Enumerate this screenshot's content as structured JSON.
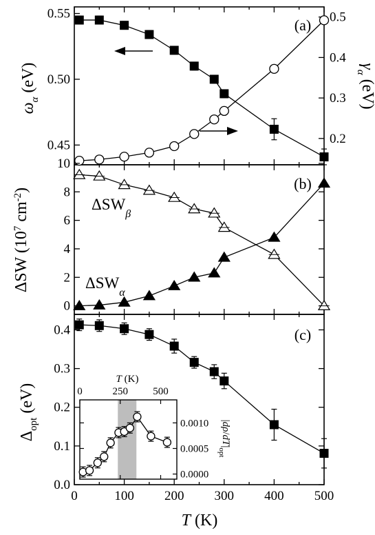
{
  "chart_data": [
    {
      "panel": "a",
      "type": "line",
      "panel_label": "(a)",
      "xlabel": "T (K)",
      "xlim": [
        0,
        500
      ],
      "x_ticks": [
        0,
        100,
        200,
        300,
        400,
        500
      ],
      "ylabel_left": "ω_α (eV)",
      "ylim_left": [
        0.435,
        0.555
      ],
      "y_ticks_left": [
        "0.45",
        "0.50",
        "0.55"
      ],
      "ylabel_right": "γ_α (eV)",
      "ylim_right": [
        0.135,
        0.525
      ],
      "y_ticks_right": [
        "0.2",
        "0.3",
        "0.4",
        "0.5"
      ],
      "series": [
        {
          "axis": "left",
          "marker": "filled-square",
          "x": [
            10,
            50,
            100,
            150,
            200,
            240,
            280,
            300,
            400,
            500
          ],
          "y": [
            0.545,
            0.545,
            0.541,
            0.534,
            0.522,
            0.51,
            0.5,
            0.489,
            0.462,
            0.441
          ],
          "err": [
            0.003,
            0.003,
            0.003,
            0.003,
            0.003,
            0.003,
            0.003,
            0.003,
            0.008,
            0.006
          ]
        },
        {
          "axis": "right",
          "marker": "open-circle",
          "x": [
            10,
            50,
            100,
            150,
            200,
            240,
            280,
            300,
            400,
            500
          ],
          "y": [
            0.145,
            0.148,
            0.155,
            0.165,
            0.181,
            0.211,
            0.247,
            0.268,
            0.372,
            0.492
          ],
          "err": [
            0.008,
            0.008,
            0.008,
            0.008,
            0.008,
            0.008,
            0.008,
            0.008,
            0.009,
            0.008
          ]
        }
      ]
    },
    {
      "panel": "b",
      "type": "line",
      "panel_label": "(b)",
      "xlabel": "T (K)",
      "xlim": [
        0,
        500
      ],
      "x_ticks": [
        0,
        100,
        200,
        300,
        400,
        500
      ],
      "ylabel": "ΔSW (10⁷ cm⁻²)",
      "ylim": [
        -0.6,
        9.9
      ],
      "y_ticks": [
        "0",
        "2",
        "4",
        "6",
        "8",
        "10"
      ],
      "series": [
        {
          "name": "ΔSW_β",
          "marker": "open-triangle",
          "x": [
            10,
            50,
            100,
            150,
            200,
            240,
            280,
            300,
            400,
            500
          ],
          "y": [
            9.2,
            9.1,
            8.5,
            8.1,
            7.6,
            6.8,
            6.5,
            5.5,
            3.6,
            0.0
          ]
        },
        {
          "name": "ΔSW_α",
          "marker": "filled-triangle",
          "x": [
            10,
            50,
            100,
            150,
            200,
            240,
            280,
            300,
            400,
            500
          ],
          "y": [
            0.0,
            0.05,
            0.25,
            0.7,
            1.4,
            2.0,
            2.3,
            3.4,
            4.8,
            8.6
          ]
        }
      ],
      "annotations": {
        "beta": {
          "main": "ΔSW",
          "sub": "β"
        },
        "alpha": {
          "main": "ΔSW",
          "sub": "α"
        }
      }
    },
    {
      "panel": "c",
      "type": "line",
      "panel_label": "(c)",
      "xlabel": "T (K)",
      "xlim": [
        0,
        500
      ],
      "x_ticks": [
        "0",
        "100",
        "200",
        "300",
        "400",
        "500"
      ],
      "ylabel": "Δ_opt (eV)",
      "ylim": [
        0.0,
        0.44
      ],
      "y_ticks": [
        "0.0",
        "0.1",
        "0.2",
        "0.3",
        "0.4"
      ],
      "series": [
        {
          "marker": "filled-square",
          "x": [
            10,
            50,
            100,
            150,
            200,
            240,
            280,
            300,
            400,
            500
          ],
          "y": [
            0.413,
            0.411,
            0.403,
            0.388,
            0.358,
            0.316,
            0.292,
            0.268,
            0.155,
            0.081
          ],
          "err": [
            0.015,
            0.015,
            0.015,
            0.015,
            0.018,
            0.015,
            0.018,
            0.02,
            0.04,
            0.038
          ]
        }
      ]
    },
    {
      "panel": "c-inset",
      "type": "line",
      "xlabel": "T (K)",
      "xlim": [
        0,
        600
      ],
      "x_ticks": [
        "0",
        "250",
        "500"
      ],
      "ylabel_right": "|∇ρ/dT|_opt",
      "ylim": [
        -0.0001,
        0.00145
      ],
      "y_ticks": [
        "0.0000",
        "0.0005",
        "0.0010"
      ],
      "shaded_band": [
        235,
        350
      ],
      "series": [
        {
          "marker": "open-circle",
          "x": [
            20,
            60,
            110,
            150,
            190,
            240,
            275,
            310,
            355,
            440,
            540
          ],
          "y": [
            4e-05,
            7e-05,
            0.00022,
            0.00034,
            0.00061,
            0.00081,
            0.00083,
            0.0009,
            0.00112,
            0.00074,
            0.00062
          ],
          "err": [
            0.0001,
            0.0001,
            0.0001,
            0.0001,
            0.0001,
            0.0001,
            0.0001,
            0.0001,
            0.0001,
            0.0001,
            0.0001
          ]
        }
      ]
    }
  ]
}
